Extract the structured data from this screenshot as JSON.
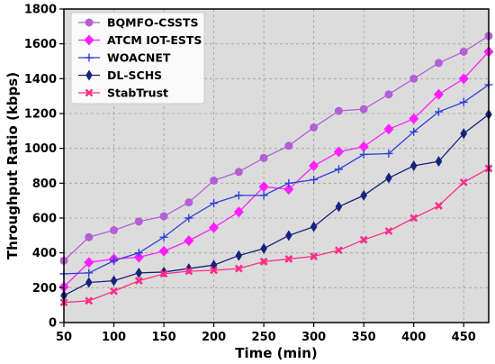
{
  "chart_data": {
    "type": "line",
    "xlabel": "Time (min)",
    "ylabel": "Throughput Ratio (kbps)",
    "xlim": [
      50,
      475
    ],
    "ylim": [
      0,
      1800
    ],
    "x_ticks": [
      "50",
      "100",
      "150",
      "200",
      "250",
      "300",
      "350",
      "400",
      "450"
    ],
    "y_ticks": [
      "0",
      "200",
      "400",
      "600",
      "800",
      "1000",
      "1200",
      "1400",
      "1600",
      "1800"
    ],
    "grid": true,
    "legend_position": "top-left",
    "plot_background": "#dcdcdc",
    "x": [
      50,
      75,
      100,
      125,
      150,
      175,
      200,
      225,
      250,
      275,
      300,
      325,
      350,
      375,
      400,
      425,
      450,
      475
    ],
    "series": [
      {
        "name": "BQMFO-CSSTS",
        "color": "#b45fd6",
        "marker": "circle",
        "values": [
          355,
          490,
          530,
          580,
          610,
          690,
          815,
          865,
          945,
          1015,
          1120,
          1215,
          1225,
          1310,
          1400,
          1490,
          1555,
          1645
        ]
      },
      {
        "name": "ATCM IOT-ESTS",
        "color": "#ff1fff",
        "marker": "diamond",
        "values": [
          205,
          345,
          365,
          375,
          410,
          470,
          545,
          635,
          780,
          765,
          900,
          980,
          1010,
          1110,
          1170,
          1310,
          1400,
          1555
        ]
      },
      {
        "name": "WOACNET",
        "color": "#2e3fd8",
        "marker": "plus",
        "values": [
          280,
          285,
          355,
          400,
          490,
          600,
          685,
          730,
          730,
          800,
          820,
          880,
          965,
          970,
          1095,
          1210,
          1265,
          1365
        ]
      },
      {
        "name": "DL-SCHS",
        "color": "#15237a",
        "marker": "thin-diamond",
        "values": [
          155,
          230,
          240,
          285,
          290,
          310,
          330,
          385,
          425,
          500,
          550,
          665,
          730,
          830,
          900,
          925,
          1085,
          1195
        ]
      },
      {
        "name": "StabTrust",
        "color": "#ff2d8a",
        "marker": "x",
        "values": [
          115,
          125,
          180,
          240,
          280,
          295,
          300,
          310,
          350,
          365,
          380,
          415,
          475,
          525,
          600,
          670,
          805,
          885
        ]
      }
    ]
  }
}
